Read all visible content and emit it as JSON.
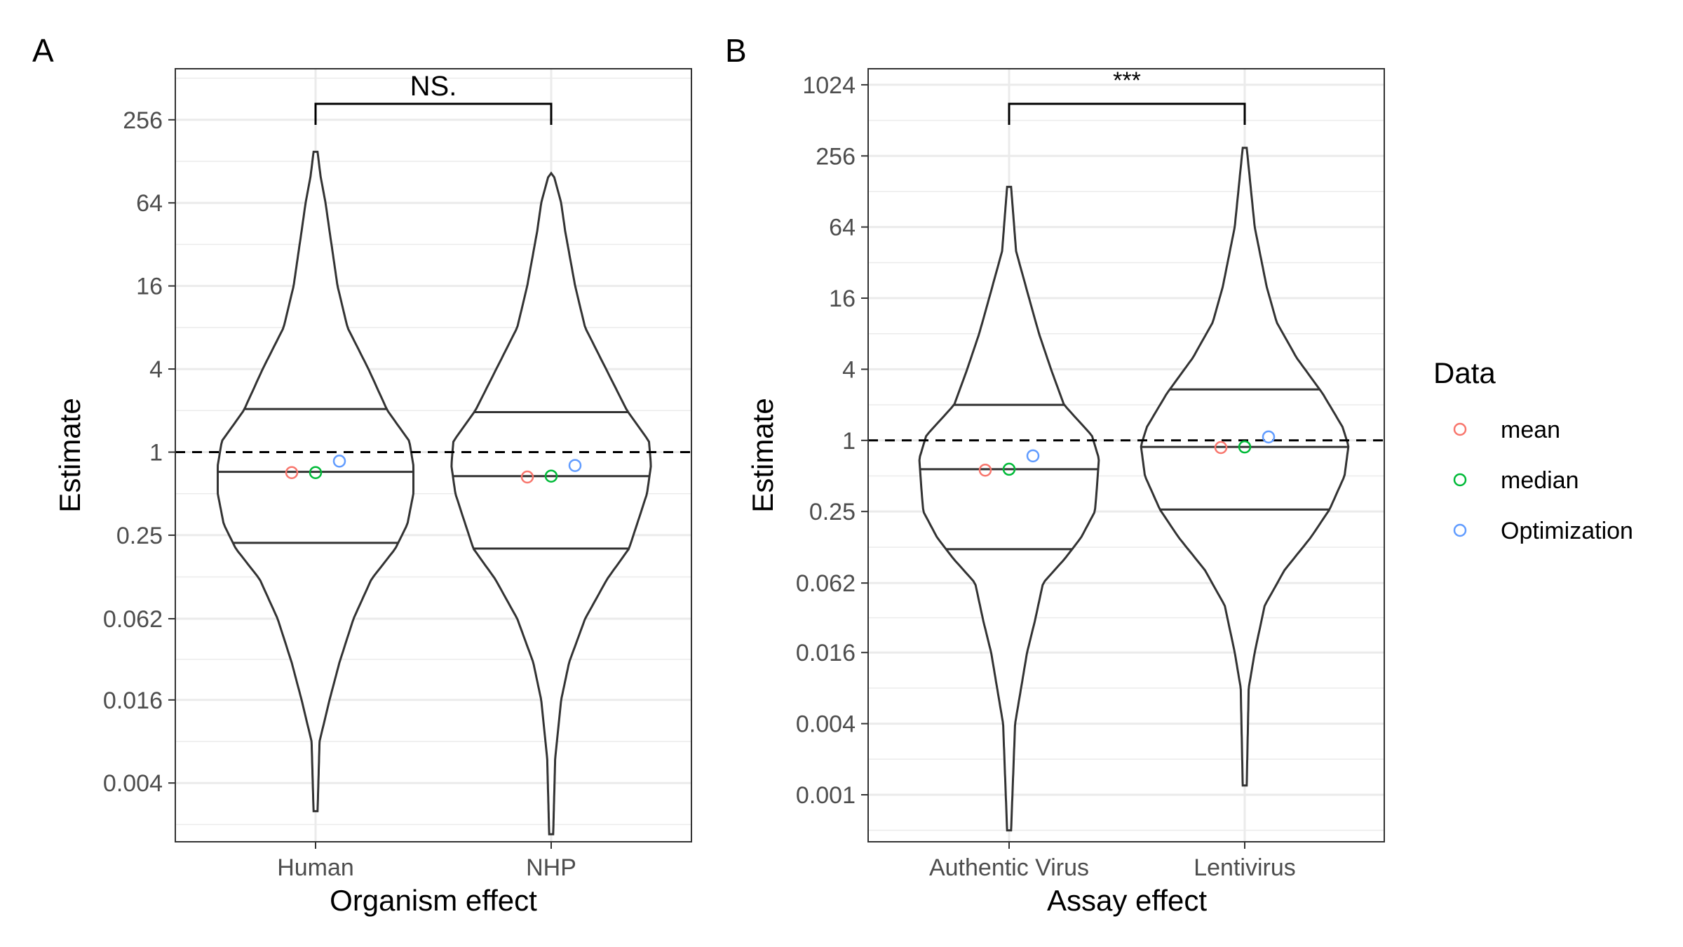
{
  "chart_data": [
    {
      "type": "violin",
      "panel_label": "A",
      "xlabel": "Organism effect",
      "ylabel": "Estimate",
      "y_scale": "log2",
      "yticks": [
        0.004,
        0.016,
        0.062,
        0.25,
        1,
        4,
        16,
        64,
        256
      ],
      "ytick_labels": [
        "0.004",
        "0.016",
        "0.062",
        "0.25",
        "1",
        "4",
        "16",
        "64",
        "256"
      ],
      "ylim": [
        0.0015,
        600
      ],
      "reference_line": 1,
      "grid": true,
      "categories": [
        "Human",
        "NHP"
      ],
      "violins": [
        {
          "category": "Human",
          "min": 0.0025,
          "max": 150,
          "quantiles": [
            0.22,
            0.72,
            2.05
          ],
          "profile": [
            [
              0.0025,
              0.2
            ],
            [
              0.008,
              0.4
            ],
            [
              0.016,
              1.4
            ],
            [
              0.03,
              2.4
            ],
            [
              0.062,
              3.8
            ],
            [
              0.12,
              5.6
            ],
            [
              0.2,
              8.0
            ],
            [
              0.3,
              9.2
            ],
            [
              0.5,
              9.8
            ],
            [
              0.8,
              9.8
            ],
            [
              1.2,
              9.4
            ],
            [
              2,
              7.2
            ],
            [
              4,
              5.3
            ],
            [
              8,
              3.2
            ],
            [
              16,
              2.2
            ],
            [
              40,
              1.4
            ],
            [
              64,
              1.0
            ],
            [
              100,
              0.5
            ],
            [
              150,
              0.2
            ]
          ],
          "points": {
            "mean": 0.71,
            "median": 0.71,
            "Optimization": 0.86
          }
        },
        {
          "category": "NHP",
          "min": 0.0017,
          "max": 105,
          "quantiles": [
            0.2,
            0.67,
            1.95
          ],
          "profile": [
            [
              0.0017,
              0.2
            ],
            [
              0.006,
              0.4
            ],
            [
              0.016,
              1.0
            ],
            [
              0.03,
              1.8
            ],
            [
              0.062,
              3.4
            ],
            [
              0.12,
              5.6
            ],
            [
              0.2,
              7.8
            ],
            [
              0.3,
              8.6
            ],
            [
              0.5,
              9.6
            ],
            [
              0.8,
              10.0
            ],
            [
              1.2,
              9.8
            ],
            [
              2,
              7.6
            ],
            [
              4,
              5.5
            ],
            [
              8,
              3.4
            ],
            [
              16,
              2.4
            ],
            [
              40,
              1.4
            ],
            [
              64,
              1.0
            ],
            [
              105,
              0.2
            ]
          ],
          "points": {
            "mean": 0.66,
            "median": 0.67,
            "Optimization": 0.8
          }
        }
      ],
      "significance": {
        "pair": [
          "Human",
          "NHP"
        ],
        "label": "NS."
      }
    },
    {
      "type": "violin",
      "panel_label": "B",
      "xlabel": "Assay effect",
      "ylabel": "Estimate",
      "y_scale": "log2",
      "yticks": [
        0.001,
        0.004,
        0.016,
        0.062,
        0.25,
        1,
        4,
        16,
        64,
        256,
        1024
      ],
      "ytick_labels": [
        "0.001",
        "0.004",
        "0.016",
        "0.062",
        "0.25",
        "1",
        "4",
        "16",
        "64",
        "256",
        "1024"
      ],
      "ylim": [
        0.0004,
        1400
      ],
      "reference_line": 1,
      "grid": true,
      "categories": [
        "Authentic Virus",
        "Lentivirus"
      ],
      "violins": [
        {
          "category": "Authentic Virus",
          "min": 0.0005,
          "max": 140,
          "quantiles": [
            0.12,
            0.57,
            2.0
          ],
          "profile": [
            [
              0.0005,
              0.2
            ],
            [
              0.004,
              0.6
            ],
            [
              0.016,
              1.8
            ],
            [
              0.03,
              2.6
            ],
            [
              0.062,
              3.4
            ],
            [
              0.1,
              5.6
            ],
            [
              0.15,
              7.2
            ],
            [
              0.25,
              8.6
            ],
            [
              0.4,
              8.8
            ],
            [
              0.7,
              9.0
            ],
            [
              1.1,
              8.3
            ],
            [
              2,
              5.5
            ],
            [
              4,
              4.2
            ],
            [
              8,
              3.0
            ],
            [
              16,
              2.0
            ],
            [
              40,
              0.7
            ],
            [
              140,
              0.2
            ]
          ],
          "points": {
            "mean": 0.56,
            "median": 0.57,
            "Optimization": 0.74
          }
        },
        {
          "category": "Lentivirus",
          "min": 0.0012,
          "max": 300,
          "quantiles": [
            0.26,
            0.88,
            2.7
          ],
          "profile": [
            [
              0.0012,
              0.2
            ],
            [
              0.008,
              0.4
            ],
            [
              0.016,
              1.0
            ],
            [
              0.04,
              2.0
            ],
            [
              0.08,
              4.0
            ],
            [
              0.15,
              6.6
            ],
            [
              0.26,
              8.5
            ],
            [
              0.5,
              10.0
            ],
            [
              0.9,
              10.4
            ],
            [
              1.3,
              9.8
            ],
            [
              2.5,
              7.8
            ],
            [
              5,
              5.2
            ],
            [
              10,
              3.2
            ],
            [
              20,
              2.2
            ],
            [
              64,
              1.0
            ],
            [
              300,
              0.2
            ]
          ],
          "points": {
            "mean": 0.87,
            "median": 0.88,
            "Optimization": 1.07
          }
        }
      ],
      "significance": {
        "pair": [
          "Authentic Virus",
          "Lentivirus"
        ],
        "label": "***"
      }
    }
  ],
  "legend": {
    "title": "Data",
    "entries": [
      {
        "label": "mean",
        "color": "#F8766D"
      },
      {
        "label": "median",
        "color": "#00BA38"
      },
      {
        "label": "Optimization",
        "color": "#619CFF"
      }
    ]
  }
}
